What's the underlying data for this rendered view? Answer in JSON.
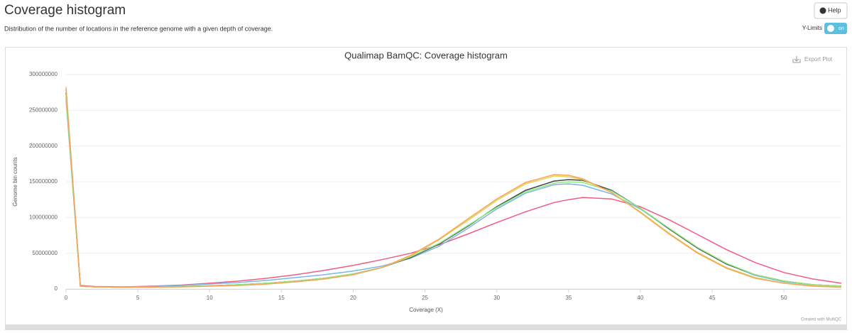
{
  "header": {
    "title": "Coverage histogram",
    "description": "Distribution of the number of locations in the reference genome with a given depth of coverage.",
    "help_button": "Help",
    "ylimits_label": "Y-Limits",
    "toggle_label": "on"
  },
  "chart_data": {
    "type": "line",
    "title": "Qualimap BamQC: Coverage histogram",
    "export_label": "Export Plot",
    "credit": "Created with MultiQC",
    "x_label": "Coverage (X)",
    "y_label": "Genome bin counts",
    "x": [
      0,
      1,
      2,
      4,
      6,
      8,
      10,
      12,
      14,
      16,
      18,
      20,
      22,
      24,
      26,
      28,
      30,
      32,
      34,
      35,
      36,
      38,
      40,
      42,
      44,
      46,
      48,
      50,
      52,
      54
    ],
    "series": [
      {
        "color": "#f15c80",
        "values": [
          270000000,
          5000000,
          3500000,
          3000000,
          4000000,
          5500000,
          8000000,
          11000000,
          15000000,
          20000000,
          26000000,
          33000000,
          41000000,
          50000000,
          62000000,
          77000000,
          93000000,
          108000000,
          121000000,
          125000000,
          128000000,
          126000000,
          115000000,
          97000000,
          76000000,
          55000000,
          37000000,
          23000000,
          14000000,
          8000000
        ]
      },
      {
        "color": "#7cb5ec",
        "values": [
          265000000,
          4000000,
          3000000,
          3000000,
          3500000,
          5000000,
          7000000,
          9000000,
          12000000,
          16000000,
          20000000,
          25000000,
          32000000,
          43000000,
          60000000,
          85000000,
          112000000,
          134000000,
          146000000,
          147000000,
          145000000,
          133000000,
          112000000,
          85000000,
          57000000,
          35000000,
          19000000,
          10000000,
          6000000,
          4000000
        ]
      },
      {
        "color": "#434348",
        "values": [
          275000000,
          4000000,
          3000000,
          2500000,
          3000000,
          3500000,
          4500000,
          6000000,
          8000000,
          11000000,
          15000000,
          21000000,
          30000000,
          44000000,
          63000000,
          88000000,
          115000000,
          138000000,
          151000000,
          153000000,
          152000000,
          138000000,
          113000000,
          84000000,
          57000000,
          35000000,
          20000000,
          11000000,
          6000000,
          4000000
        ]
      },
      {
        "color": "#90ed7d",
        "values": [
          272000000,
          4000000,
          3000000,
          2500000,
          3000000,
          3500000,
          4500000,
          6000000,
          8000000,
          11000000,
          15000000,
          21000000,
          30000000,
          45000000,
          64000000,
          89000000,
          114000000,
          136000000,
          148000000,
          150000000,
          149000000,
          137000000,
          113000000,
          85000000,
          58000000,
          36000000,
          20000000,
          11000000,
          6000000,
          4000000
        ]
      },
      {
        "color": "#e4d354",
        "values": [
          283000000,
          4000000,
          3000000,
          2500000,
          2500000,
          3000000,
          4000000,
          5000000,
          7000000,
          10000000,
          14000000,
          20000000,
          30000000,
          46000000,
          69000000,
          96000000,
          124000000,
          147000000,
          158000000,
          157000000,
          153000000,
          135000000,
          108000000,
          78000000,
          51000000,
          30000000,
          16000000,
          8000000,
          4500000,
          3000000
        ]
      },
      {
        "color": "#f7a35c",
        "values": [
          280000000,
          4000000,
          3000000,
          2500000,
          2500000,
          3000000,
          4000000,
          5000000,
          7000000,
          10000000,
          14000000,
          20000000,
          30000000,
          47000000,
          70000000,
          98000000,
          126000000,
          149000000,
          160000000,
          159000000,
          154000000,
          135000000,
          107000000,
          77000000,
          50000000,
          29000000,
          15000000,
          8000000,
          4000000,
          2500000
        ]
      }
    ],
    "xlim": [
      0,
      54
    ],
    "ylim": [
      0,
      300000000
    ],
    "xticks": [
      0,
      5,
      10,
      15,
      20,
      25,
      30,
      35,
      40,
      45,
      50
    ],
    "yticks": [
      0,
      50000000,
      100000000,
      150000000,
      200000000,
      250000000,
      300000000
    ],
    "grid": true
  }
}
